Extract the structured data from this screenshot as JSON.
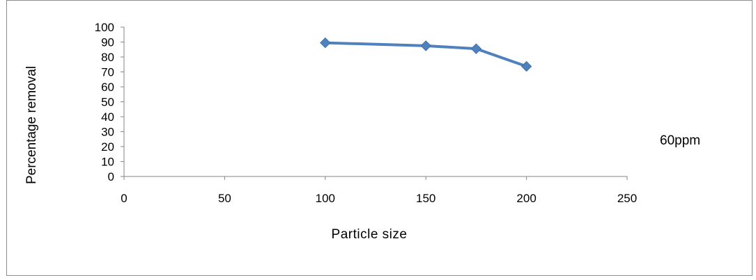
{
  "chart_data": {
    "type": "line",
    "title": "",
    "xlabel": "Particle size",
    "ylabel": "Percentage removal",
    "xlim": [
      0,
      250
    ],
    "ylim": [
      0,
      100
    ],
    "x_ticks": [
      "0",
      "50",
      "100",
      "150",
      "200",
      "250"
    ],
    "y_ticks": [
      "0",
      "10",
      "20",
      "30",
      "40",
      "50",
      "60",
      "70",
      "80",
      "90",
      "100"
    ],
    "grid": false,
    "legend_position": "right",
    "series": [
      {
        "name": "60ppm",
        "color": "#4f81bd",
        "marker": "diamond",
        "x": [
          100,
          150,
          175,
          200
        ],
        "y": [
          89.5,
          87.5,
          85.5,
          73.7
        ]
      }
    ]
  }
}
